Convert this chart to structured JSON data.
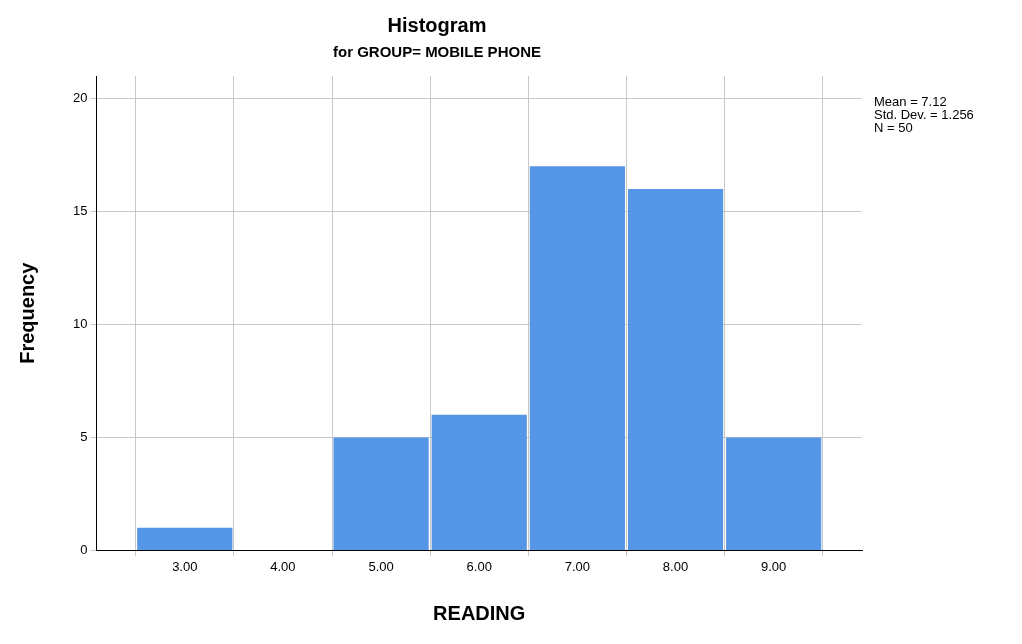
{
  "chart_data": {
    "type": "histogram",
    "title": "Histogram",
    "subtitle": "for GROUP= MOBILE PHONE",
    "xlabel": "READING",
    "ylabel": "Frequency",
    "bins": [
      2.5,
      3.5,
      4.5,
      5.5,
      6.5,
      7.5,
      8.5,
      9.5
    ],
    "values": [
      1,
      0,
      5,
      6,
      17,
      16,
      5
    ],
    "color": "#5596e6",
    "xlim": [
      2.1,
      9.9
    ],
    "xticks": [
      {
        "value": 3,
        "label": "3.00"
      },
      {
        "value": 4,
        "label": "4.00"
      },
      {
        "value": 5,
        "label": "5.00"
      },
      {
        "value": 6,
        "label": "6.00"
      },
      {
        "value": 7,
        "label": "7.00"
      },
      {
        "value": 8,
        "label": "8.00"
      },
      {
        "value": 9,
        "label": "9.00"
      }
    ],
    "ylim": [
      0,
      21
    ],
    "yticks": [
      0,
      5,
      10,
      15,
      20
    ],
    "grid": true,
    "legend": false,
    "annotations": [
      "Mean = 7.12",
      "Std. Dev. = 1.256",
      "N = 50"
    ]
  }
}
